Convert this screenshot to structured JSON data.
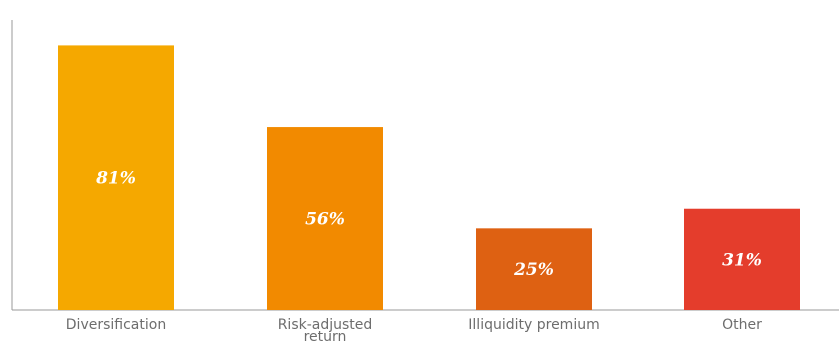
{
  "chart_data": {
    "type": "bar",
    "categories": [
      "Diversification",
      "Risk-adjusted return",
      "Illiquidity premium",
      "Other"
    ],
    "category_lines": [
      [
        "Diversification"
      ],
      [
        "Risk-adjusted",
        "return"
      ],
      [
        "Illiquidity premium"
      ],
      [
        "Other"
      ]
    ],
    "values": [
      81,
      56,
      25,
      31
    ],
    "value_labels": [
      "81%",
      "56%",
      "25%",
      "31%"
    ],
    "colors": [
      "#f5a800",
      "#f28a00",
      "#de6112",
      "#e43d2c"
    ],
    "title": "",
    "xlabel": "",
    "ylabel": "",
    "ylim": [
      0,
      90
    ],
    "grid": false,
    "legend": "none"
  }
}
